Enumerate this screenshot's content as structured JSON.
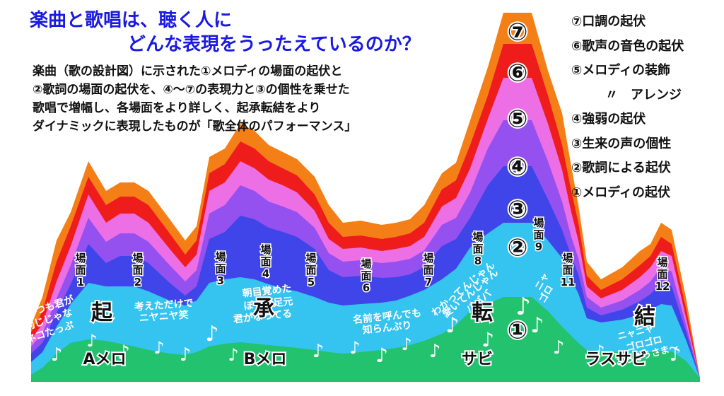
{
  "title": {
    "line1": "楽曲と歌唱は、聴く人に",
    "line2": "どんな表現をうったえているのか？"
  },
  "description": [
    "楽曲（歌の設計図）に示された①メロディの場面の起伏と",
    "②歌詞の場面の起伏を、④〜⑦の表現力と③の個性を乗せた",
    "歌唱で増幅し、各場面をより詳しく、起承転結をより",
    "ダイナミックに表現したものが「歌全体のパフォーマンス」"
  ],
  "legend": [
    "⑦口調の起伏",
    "⑥歌声の音色の起伏",
    "⑤メロディの装飾",
    "〃　アレンジ",
    "④強弱の起伏",
    "③生来の声の個性",
    "②歌詞による起伏",
    "①メロディの起伏"
  ],
  "layer_colors": {
    "orange": "#f57f17",
    "red": "#ef1c1c",
    "pink": "#ec6fe6",
    "violet": "#9550f0",
    "blue": "#3f45e8",
    "cyan": "#35c3f0",
    "green": "#22c26e"
  },
  "layer_markers": [
    "⑦",
    "⑥",
    "⑤",
    "④",
    "③",
    "②",
    "①"
  ],
  "scenes": [
    {
      "label": "場面",
      "number": "1"
    },
    {
      "label": "場面",
      "number": "2"
    },
    {
      "label": "場面",
      "number": "3"
    },
    {
      "label": "場面",
      "number": "4"
    },
    {
      "label": "場面",
      "number": "5"
    },
    {
      "label": "場面",
      "number": "6"
    },
    {
      "label": "場面",
      "number": "7"
    },
    {
      "label": "場面",
      "number": "8"
    },
    {
      "label": "場面",
      "number": "9"
    },
    {
      "label": "場面",
      "number": "11"
    },
    {
      "label": "場面",
      "number": "12"
    }
  ],
  "kishoutenketsu": [
    "起",
    "承",
    "転",
    "結"
  ],
  "sections": [
    "Aメロ",
    "Bメロ",
    "サビ",
    "ラスサビ"
  ],
  "lyrics": [
    "いつも君が",
    "同じじゃな",
    "ネコたっぷ",
    "考えただけで",
    "ニヤニヤ笑",
    "朝目覚めた",
    "ぼくの足元",
    "君がなってる",
    "名前を呼んでも",
    "知らんぷり",
    "わかってんじゃん",
    "愛いてんじゃん",
    "バババ",
    "ニャ",
    "ゴロ",
    "ニャニャ",
    "ゴロゴロ",
    "ごちそうさま〜"
  ],
  "music_note": "♪"
}
